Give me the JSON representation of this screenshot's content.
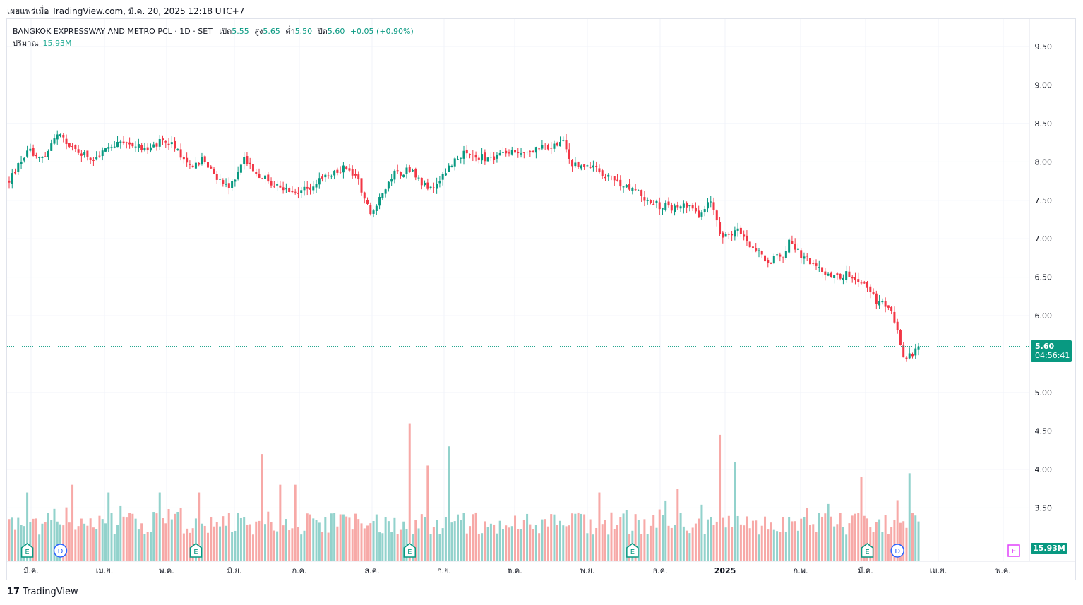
{
  "header": {
    "published": "เผยแพร่เมื่อ TradingView.com, มี.ค. 20, 2025 12:18 UTC+7"
  },
  "legend": {
    "symbol": "BANGKOK EXPRESSWAY AND METRO PCL · 1D · SET",
    "open_label": "เปิด",
    "open": "5.55",
    "high_label": "สูง",
    "high": "5.65",
    "low_label": "ต่ำ",
    "low": "5.50",
    "close_label": "ปิด",
    "close": "5.60",
    "change": "+0.05 (+0.90%)",
    "volume_label": "ปริมาณ",
    "volume": "15.93M"
  },
  "price_tag": {
    "price": "5.60",
    "countdown": "04:56:41"
  },
  "volume_tag": "15.93M",
  "footer": {
    "brand": "TradingView",
    "logo": "17"
  },
  "colors": {
    "up": "#089981",
    "down": "#f23645",
    "up_volume": "#92d2cc",
    "down_volume": "#f7a9a7",
    "grid": "#f0f3fa"
  },
  "chart_data": {
    "type": "candlestick",
    "y_ticks": [
      "9.50",
      "9.00",
      "8.50",
      "8.00",
      "7.50",
      "7.00",
      "6.50",
      "6.00",
      "5.00",
      "4.50",
      "4.00",
      "3.50"
    ],
    "ylim": [
      3.15,
      9.75
    ],
    "x_ticks": [
      "มี.ค.",
      "เม.ย.",
      "พ.ค.",
      "มิ.ย.",
      "ก.ค.",
      "ส.ค.",
      "ก.ย.",
      "ต.ค.",
      "พ.ย.",
      "ธ.ค.",
      "2025",
      "ก.พ.",
      "มี.ค.",
      "เม.ย.",
      "พ.ค."
    ],
    "last_close": 5.6,
    "price_anchors": [
      [
        0,
        7.75
      ],
      [
        6,
        8.15
      ],
      [
        12,
        8.05
      ],
      [
        16,
        8.35
      ],
      [
        22,
        8.15
      ],
      [
        28,
        8.05
      ],
      [
        34,
        8.2
      ],
      [
        40,
        8.25
      ],
      [
        46,
        8.15
      ],
      [
        52,
        8.3
      ],
      [
        56,
        8.15
      ],
      [
        60,
        7.95
      ],
      [
        65,
        8.05
      ],
      [
        68,
        7.8
      ],
      [
        73,
        7.65
      ],
      [
        78,
        8.05
      ],
      [
        84,
        7.8
      ],
      [
        90,
        7.65
      ],
      [
        97,
        7.6
      ],
      [
        103,
        7.75
      ],
      [
        108,
        7.85
      ],
      [
        112,
        7.95
      ],
      [
        116,
        7.75
      ],
      [
        120,
        7.35
      ],
      [
        124,
        7.55
      ],
      [
        128,
        7.85
      ],
      [
        133,
        7.9
      ],
      [
        137,
        7.7
      ],
      [
        141,
        7.62
      ],
      [
        145,
        7.9
      ],
      [
        150,
        8.1
      ],
      [
        158,
        8.05
      ],
      [
        166,
        8.1
      ],
      [
        174,
        8.15
      ],
      [
        180,
        8.2
      ],
      [
        184,
        8.25
      ],
      [
        187,
        7.95
      ],
      [
        192,
        7.95
      ],
      [
        197,
        7.85
      ],
      [
        203,
        7.7
      ],
      [
        209,
        7.6
      ],
      [
        214,
        7.45
      ],
      [
        220,
        7.4
      ],
      [
        225,
        7.45
      ],
      [
        229,
        7.3
      ],
      [
        233,
        7.5
      ],
      [
        236,
        7.05
      ],
      [
        242,
        7.1
      ],
      [
        247,
        6.9
      ],
      [
        252,
        6.7
      ],
      [
        257,
        6.8
      ],
      [
        259,
        6.95
      ],
      [
        264,
        6.75
      ],
      [
        269,
        6.6
      ],
      [
        275,
        6.5
      ],
      [
        279,
        6.55
      ],
      [
        284,
        6.4
      ],
      [
        288,
        6.2
      ],
      [
        293,
        6.05
      ],
      [
        297,
        5.5
      ],
      [
        300,
        5.45
      ],
      [
        302,
        5.6
      ]
    ],
    "volume_events": [
      [
        6,
        3.7
      ],
      [
        21,
        3.8
      ],
      [
        33,
        3.7
      ],
      [
        50,
        3.7
      ],
      [
        63,
        3.7
      ],
      [
        84,
        4.2
      ],
      [
        90,
        3.8
      ],
      [
        95,
        3.8
      ],
      [
        133,
        4.6
      ],
      [
        139,
        4.05
      ],
      [
        146,
        4.3
      ],
      [
        196,
        3.7
      ],
      [
        222,
        3.75
      ],
      [
        236,
        4.45
      ],
      [
        241,
        4.1
      ],
      [
        272,
        3.55
      ],
      [
        283,
        3.9
      ],
      [
        295,
        3.6
      ],
      [
        299,
        3.95
      ]
    ],
    "event_markers": [
      {
        "label": "E",
        "bar": 6,
        "type": "earnings"
      },
      {
        "label": "D",
        "bar": 17,
        "type": "dividend"
      },
      {
        "label": "E",
        "bar": 62,
        "type": "earnings"
      },
      {
        "label": "E",
        "bar": 133,
        "type": "earnings"
      },
      {
        "label": "E",
        "bar": 207,
        "type": "earnings"
      },
      {
        "label": "E",
        "bar": 285,
        "type": "earnings"
      },
      {
        "label": "D",
        "bar": 295,
        "type": "dividend"
      }
    ],
    "future_marker": {
      "label": "E",
      "color": "#e040fb"
    }
  }
}
